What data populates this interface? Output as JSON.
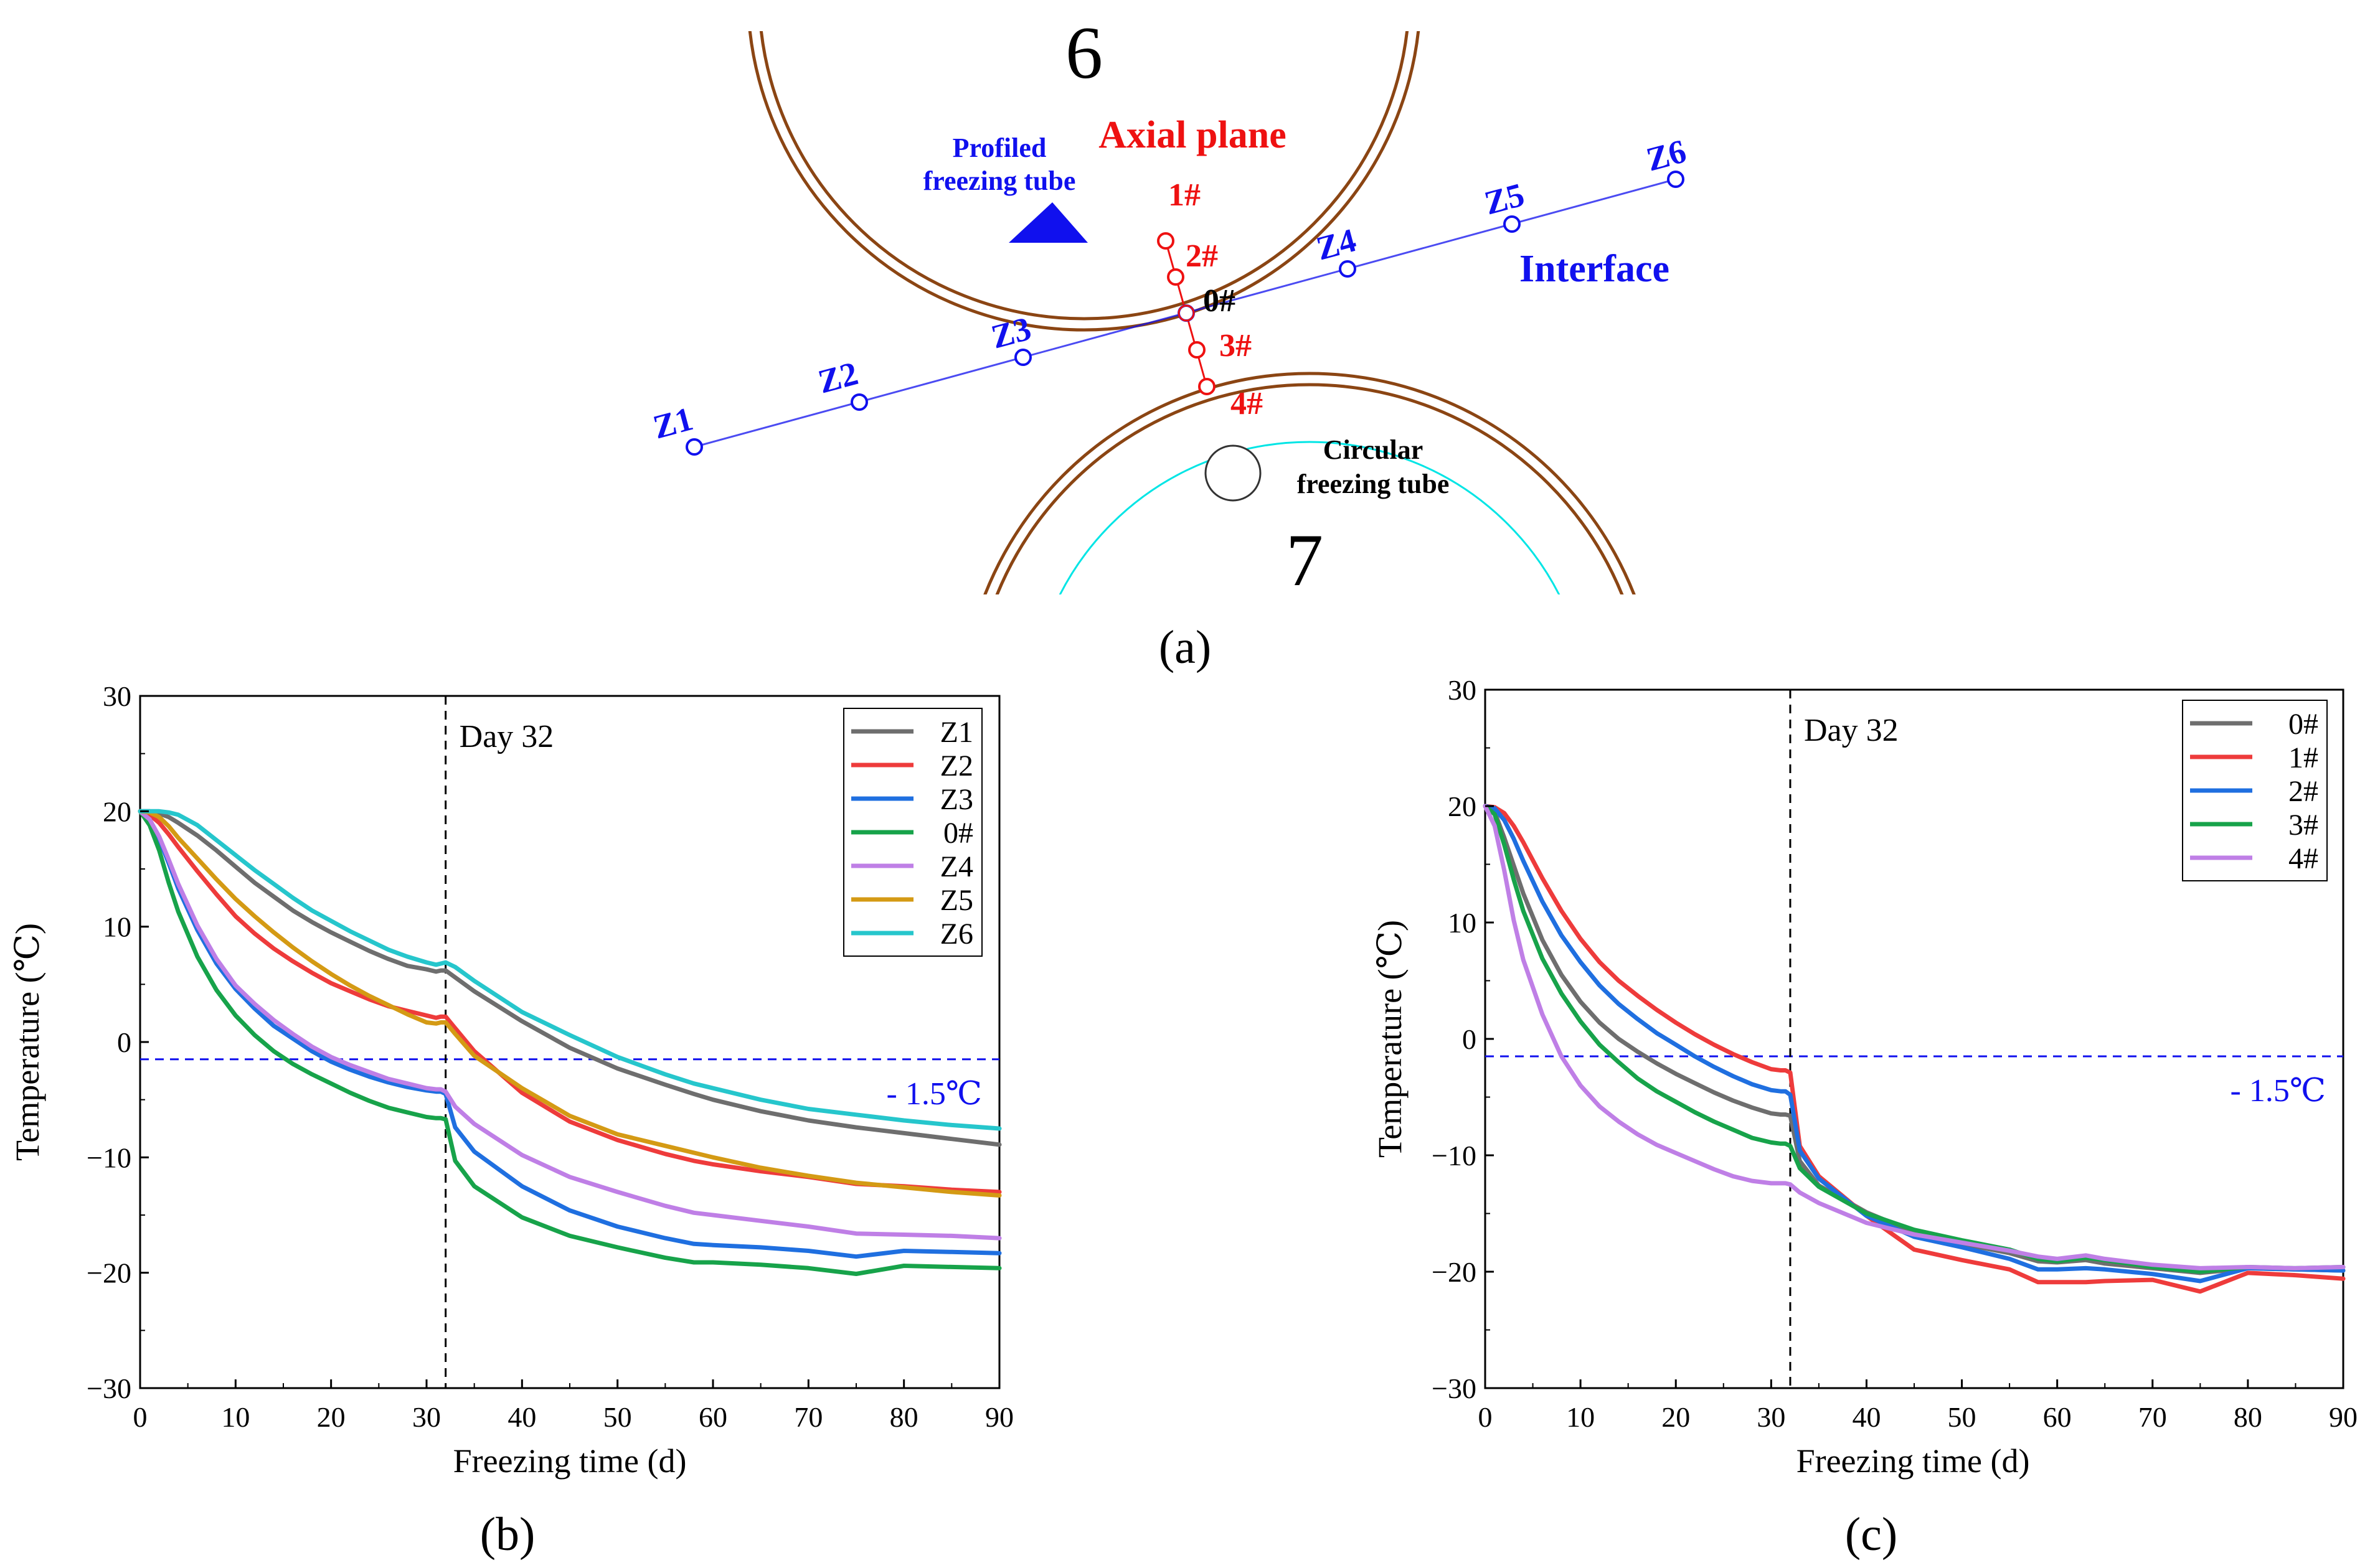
{
  "panel_a": {
    "caption": "(a)",
    "ring_label_top": "6",
    "ring_label_bottom": "7",
    "axial_plane_label": "Axial plane",
    "interface_label": "Interface",
    "profiled_tube_label_1": "Profiled",
    "profiled_tube_label_2": "freezing tube",
    "circular_tube_label_1": "Circular",
    "circular_tube_label_2": "freezing tube",
    "axial_points": [
      "1#",
      "2#",
      "0#",
      "3#",
      "4#"
    ],
    "interface_points": [
      "Z1",
      "Z2",
      "Z3",
      "Z4",
      "Z5",
      "Z6"
    ],
    "colors": {
      "ring": "#8b4513",
      "blue": "#1010ee",
      "red": "#ee1111",
      "cyan": "#00e5e5"
    }
  },
  "chart_data": [
    {
      "id": "b",
      "type": "line",
      "caption": "(b)",
      "xlabel": "Freezing time (d)",
      "ylabel": "Temperature (℃)",
      "xlim": [
        0,
        90
      ],
      "ylim": [
        -30,
        30
      ],
      "xticks": [
        0,
        10,
        20,
        30,
        40,
        50,
        60,
        70,
        80,
        90
      ],
      "yticks": [
        -30,
        -20,
        -10,
        0,
        10,
        20,
        30
      ],
      "vline": {
        "x": 32,
        "label": "Day 32"
      },
      "hline": {
        "y": -1.5,
        "label": "- 1.5℃"
      },
      "legend_position": "top-right",
      "x": [
        0,
        1,
        2,
        3,
        4,
        6,
        8,
        10,
        12,
        14,
        16,
        18,
        20,
        22,
        24,
        26,
        28,
        30,
        31,
        31.5,
        32,
        33,
        35,
        40,
        45,
        50,
        55,
        58,
        60,
        65,
        70,
        75,
        80,
        85,
        90
      ],
      "series": [
        {
          "name": "Z1",
          "color": "#6e6e6e",
          "values": [
            20,
            20,
            19.8,
            19.5,
            19,
            17.9,
            16.6,
            15.2,
            13.8,
            12.6,
            11.4,
            10.4,
            9.5,
            8.7,
            7.9,
            7.2,
            6.6,
            6.3,
            6.1,
            6.2,
            6.2,
            5.6,
            4.4,
            1.8,
            -0.5,
            -2.3,
            -3.7,
            -4.5,
            -5,
            -6,
            -6.8,
            -7.4,
            -7.9,
            -8.4,
            -8.9
          ]
        },
        {
          "name": "Z2",
          "color": "#ee3b3b",
          "values": [
            20,
            19.7,
            19,
            18,
            16.9,
            14.8,
            12.8,
            10.9,
            9.4,
            8.1,
            7,
            6,
            5.1,
            4.4,
            3.7,
            3.1,
            2.7,
            2.3,
            2.1,
            2.2,
            2.2,
            1.2,
            -0.8,
            -4.4,
            -6.9,
            -8.5,
            -9.7,
            -10.3,
            -10.6,
            -11.2,
            -11.7,
            -12.3,
            -12.5,
            -12.8,
            -13
          ]
        },
        {
          "name": "Z3",
          "color": "#1f6fe0",
          "values": [
            20,
            19.2,
            17.6,
            15.5,
            13.3,
            9.7,
            6.8,
            4.6,
            2.9,
            1.4,
            0.3,
            -0.8,
            -1.7,
            -2.4,
            -3,
            -3.5,
            -3.9,
            -4.2,
            -4.3,
            -4.3,
            -4.5,
            -7.4,
            -9.5,
            -12.5,
            -14.6,
            -16,
            -17,
            -17.5,
            -17.6,
            -17.8,
            -18.1,
            -18.6,
            -18.1,
            -18.2,
            -18.3
          ]
        },
        {
          "name": "0#",
          "color": "#17a34a",
          "values": [
            20,
            18.8,
            16.6,
            13.8,
            11.3,
            7.4,
            4.5,
            2.3,
            0.6,
            -0.8,
            -1.9,
            -2.8,
            -3.6,
            -4.4,
            -5.1,
            -5.7,
            -6.1,
            -6.5,
            -6.6,
            -6.6,
            -6.7,
            -10.3,
            -12.5,
            -15.2,
            -16.8,
            -17.8,
            -18.7,
            -19.1,
            -19.1,
            -19.3,
            -19.6,
            -20.1,
            -19.4,
            -19.5,
            -19.6
          ]
        },
        {
          "name": "Z4",
          "color": "#bf7fe6",
          "values": [
            20,
            19.3,
            17.8,
            15.8,
            13.7,
            10.1,
            7.2,
            4.9,
            3.3,
            1.9,
            0.7,
            -0.4,
            -1.3,
            -2,
            -2.6,
            -3.2,
            -3.6,
            -4,
            -4.1,
            -4.1,
            -4.3,
            -5.6,
            -7.1,
            -9.8,
            -11.7,
            -13,
            -14.2,
            -14.8,
            -15,
            -15.5,
            -16,
            -16.6,
            -16.7,
            -16.8,
            -17
          ]
        },
        {
          "name": "Z5",
          "color": "#d49a14",
          "values": [
            20,
            19.9,
            19.5,
            18.7,
            17.7,
            15.9,
            14.1,
            12.4,
            10.9,
            9.5,
            8.2,
            7,
            5.9,
            4.9,
            4,
            3.2,
            2.4,
            1.7,
            1.6,
            1.7,
            1.7,
            0.7,
            -1.2,
            -4,
            -6.4,
            -8,
            -9,
            -9.6,
            -10,
            -10.9,
            -11.6,
            -12.2,
            -12.6,
            -13,
            -13.3
          ]
        },
        {
          "name": "Z6",
          "color": "#26c6cc",
          "values": [
            20,
            20,
            20,
            19.9,
            19.7,
            18.8,
            17.5,
            16.2,
            14.9,
            13.7,
            12.5,
            11.4,
            10.5,
            9.6,
            8.8,
            8,
            7.4,
            6.9,
            6.7,
            6.8,
            6.9,
            6.5,
            5.3,
            2.6,
            0.6,
            -1.3,
            -2.8,
            -3.6,
            -4,
            -5,
            -5.8,
            -6.3,
            -6.8,
            -7.2,
            -7.5
          ]
        }
      ]
    },
    {
      "id": "c",
      "type": "line",
      "caption": "(c)",
      "xlabel": "Freezing time (d)",
      "ylabel": "Temperature (℃)",
      "xlim": [
        0,
        90
      ],
      "ylim": [
        -30,
        30
      ],
      "xticks": [
        0,
        10,
        20,
        30,
        40,
        50,
        60,
        70,
        80,
        90
      ],
      "yticks": [
        -30,
        -20,
        -10,
        0,
        10,
        20,
        30
      ],
      "vline": {
        "x": 32,
        "label": "Day 32"
      },
      "hline": {
        "y": -1.5,
        "label": "- 1.5℃"
      },
      "legend_position": "top-right",
      "x": [
        0,
        1,
        2,
        3,
        4,
        6,
        8,
        10,
        12,
        14,
        16,
        18,
        20,
        22,
        24,
        26,
        28,
        30,
        31,
        31.5,
        32,
        33,
        35,
        40,
        45,
        50,
        55,
        58,
        60,
        63,
        65,
        70,
        75,
        80,
        85,
        90
      ],
      "series": [
        {
          "name": "0#",
          "color": "#6e6e6e",
          "values": [
            20,
            19.5,
            17.3,
            14.9,
            12.5,
            8.5,
            5.5,
            3.2,
            1.4,
            0,
            -1.1,
            -2.1,
            -3,
            -3.8,
            -4.6,
            -5.3,
            -5.9,
            -6.4,
            -6.5,
            -6.5,
            -6.6,
            -10.5,
            -12.6,
            -14.9,
            -16.6,
            -17.6,
            -18.4,
            -19.1,
            -19.2,
            -19,
            -19.3,
            -19.7,
            -20.1,
            -19.7,
            -19.8,
            -19.9
          ]
        },
        {
          "name": "1#",
          "color": "#ee3b3b",
          "values": [
            20,
            19.9,
            19.4,
            18.3,
            16.9,
            13.8,
            11,
            8.6,
            6.6,
            5,
            3.7,
            2.5,
            1.4,
            0.4,
            -0.5,
            -1.3,
            -2,
            -2.6,
            -2.7,
            -2.7,
            -2.9,
            -9.2,
            -11.8,
            -15.2,
            -18.1,
            -19,
            -19.8,
            -20.9,
            -20.9,
            -20.9,
            -20.8,
            -20.7,
            -21.7,
            -20.1,
            -20.3,
            -20.6
          ]
        },
        {
          "name": "2#",
          "color": "#1f6fe0",
          "values": [
            20,
            19.8,
            18.8,
            17.2,
            15.3,
            11.8,
            8.9,
            6.6,
            4.6,
            3,
            1.7,
            0.5,
            -0.5,
            -1.5,
            -2.4,
            -3.2,
            -3.9,
            -4.4,
            -4.5,
            -4.5,
            -4.8,
            -9.6,
            -12,
            -15.2,
            -17,
            -17.9,
            -18.9,
            -19.8,
            -19.8,
            -19.7,
            -19.8,
            -20.2,
            -20.8,
            -19.7,
            -19.8,
            -19.9
          ]
        },
        {
          "name": "3#",
          "color": "#17a34a",
          "values": [
            20,
            19.3,
            16.7,
            13.7,
            11,
            6.9,
            3.9,
            1.5,
            -0.5,
            -2,
            -3.4,
            -4.5,
            -5.4,
            -6.3,
            -7.1,
            -7.8,
            -8.5,
            -8.9,
            -9,
            -9,
            -9.2,
            -11.1,
            -12.7,
            -15,
            -16.4,
            -17.3,
            -18.1,
            -18.9,
            -19.1,
            -18.8,
            -19,
            -19.6,
            -20,
            -19.6,
            -19.7,
            -19.6
          ]
        },
        {
          "name": "4#",
          "color": "#bf7fe6",
          "values": [
            20,
            18.3,
            14.5,
            10.2,
            6.8,
            2.1,
            -1.5,
            -4,
            -5.8,
            -7.1,
            -8.2,
            -9.1,
            -9.8,
            -10.5,
            -11.2,
            -11.8,
            -12.2,
            -12.4,
            -12.4,
            -12.4,
            -12.5,
            -13.2,
            -14.1,
            -15.8,
            -16.8,
            -17.5,
            -18.2,
            -18.7,
            -18.9,
            -18.6,
            -18.9,
            -19.4,
            -19.7,
            -19.6,
            -19.7,
            -19.6
          ]
        }
      ]
    }
  ]
}
